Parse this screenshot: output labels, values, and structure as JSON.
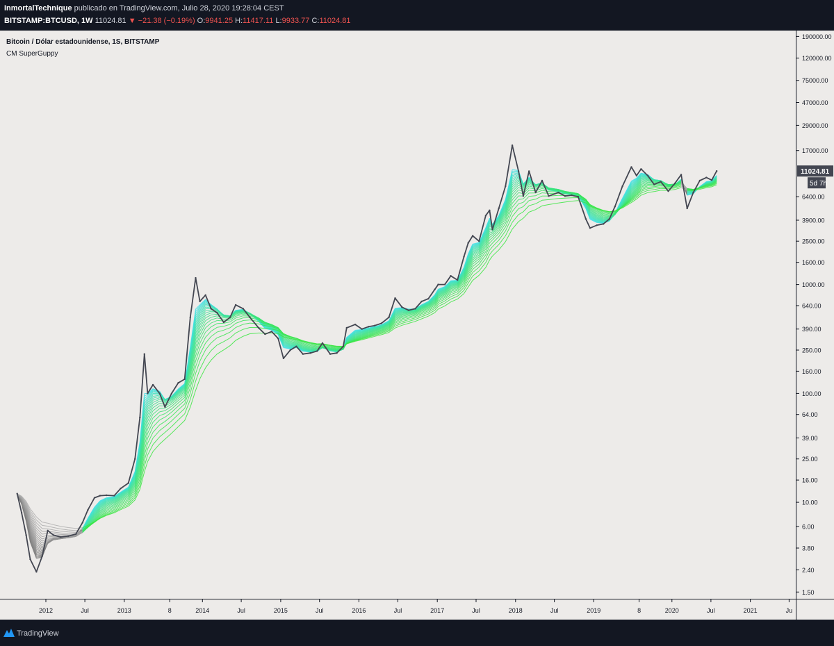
{
  "header": {
    "author": "InmortalTechnique",
    "published": " publicado en TradingView.com, Julio 28, 2020 19:28:04 CEST",
    "symbol": "BITSTAMP:BTCUSD, 1W",
    "last": "11024.81",
    "change": "▼ −21.38 (−0.19%)",
    "open_label": "O:",
    "open": "9941.25",
    "high_label": "H:",
    "high": "11417.11",
    "low_label": "L:",
    "low": "9933.77",
    "close_label": "C:",
    "close": "11024.81"
  },
  "legend": {
    "title": "Bitcoin / Dólar estadounidense, 1S, BITSTAMP",
    "indicator": "CM SuperGuppy"
  },
  "footer": {
    "brand": "TradingView"
  },
  "price_axis": {
    "ticks": [
      "190000.00",
      "120000.00",
      "75000.00",
      "47000.00",
      "29000.00",
      "17000.00",
      "6400.00",
      "3900.00",
      "2500.00",
      "1600.00",
      "1000.00",
      "640.00",
      "390.00",
      "250.00",
      "160.00",
      "100.00",
      "64.00",
      "39.00",
      "25.00",
      "16.00",
      "10.00",
      "6.00",
      "3.80",
      "2.40",
      "1.50"
    ],
    "last_price": "11024.81",
    "countdown": "5d 7h"
  },
  "time_axis": {
    "ticks": [
      "2012",
      "Jul",
      "2013",
      "8",
      "2014",
      "Jul",
      "2015",
      "Jul",
      "2016",
      "Jul",
      "2017",
      "Jul",
      "2018",
      "Jul",
      "2019",
      "8",
      "2020",
      "Jul",
      "2021",
      "Ju"
    ]
  },
  "chart_data": {
    "type": "line",
    "title": "Bitcoin / Dólar estadounidense, 1S, BITSTAMP",
    "y_scale": "log",
    "ylim": [
      1.3,
      215000
    ],
    "xlim": [
      "2011-06-01",
      "2021-08-01"
    ],
    "x": [
      "2011-08-20",
      "2011-09-10",
      "2011-10-01",
      "2011-10-20",
      "2011-11-18",
      "2011-12-15",
      "2012-01-10",
      "2012-02-05",
      "2012-03-10",
      "2012-04-15",
      "2012-05-20",
      "2012-06-20",
      "2012-07-15",
      "2012-08-15",
      "2012-09-10",
      "2012-10-10",
      "2012-11-15",
      "2012-12-15",
      "2013-01-20",
      "2013-02-20",
      "2013-03-15",
      "2013-04-05",
      "2013-04-20",
      "2013-05-15",
      "2013-06-15",
      "2013-07-10",
      "2013-08-10",
      "2013-09-10",
      "2013-10-10",
      "2013-11-05",
      "2013-11-30",
      "2013-12-20",
      "2014-01-15",
      "2014-02-10",
      "2014-03-10",
      "2014-04-10",
      "2014-05-10",
      "2014-06-05",
      "2014-07-10",
      "2014-08-10",
      "2014-09-20",
      "2014-10-20",
      "2014-11-20",
      "2014-12-20",
      "2015-01-14",
      "2015-02-15",
      "2015-03-15",
      "2015-04-15",
      "2015-05-20",
      "2015-06-20",
      "2015-07-15",
      "2015-08-20",
      "2015-09-20",
      "2015-10-20",
      "2015-11-05",
      "2015-12-15",
      "2016-01-15",
      "2016-02-15",
      "2016-03-15",
      "2016-04-15",
      "2016-05-20",
      "2016-06-18",
      "2016-07-20",
      "2016-08-20",
      "2016-09-20",
      "2016-10-20",
      "2016-11-20",
      "2016-12-20",
      "2017-01-05",
      "2017-02-05",
      "2017-03-05",
      "2017-04-05",
      "2017-05-05",
      "2017-05-25",
      "2017-06-15",
      "2017-07-15",
      "2017-08-15",
      "2017-09-02",
      "2017-09-15",
      "2017-10-15",
      "2017-11-15",
      "2017-12-17",
      "2018-01-15",
      "2018-02-06",
      "2018-03-05",
      "2018-04-05",
      "2018-05-05",
      "2018-06-05",
      "2018-07-20",
      "2018-08-20",
      "2018-09-20",
      "2018-10-20",
      "2018-11-25",
      "2018-12-15",
      "2019-01-15",
      "2019-02-15",
      "2019-03-15",
      "2019-04-10",
      "2019-05-15",
      "2019-06-26",
      "2019-07-20",
      "2019-08-10",
      "2019-09-10",
      "2019-10-10",
      "2019-11-10",
      "2019-12-15",
      "2020-01-15",
      "2020-02-13",
      "2020-03-12",
      "2020-04-10",
      "2020-05-10",
      "2020-06-10",
      "2020-07-05",
      "2020-07-28"
    ],
    "series": [
      {
        "values": [
          12,
          8,
          5,
          3,
          2.3,
          3.2,
          5.5,
          5.0,
          4.8,
          4.9,
          5.1,
          6.5,
          8.5,
          11,
          11.5,
          11.6,
          11.5,
          13.4,
          15,
          25,
          60,
          230,
          100,
          120,
          100,
          75,
          100,
          125,
          135,
          500,
          1150,
          700,
          800,
          600,
          550,
          450,
          500,
          650,
          600,
          500,
          400,
          350,
          370,
          320,
          210,
          250,
          270,
          230,
          235,
          245,
          290,
          230,
          235,
          270,
          400,
          430,
          390,
          410,
          420,
          440,
          500,
          750,
          620,
          580,
          600,
          700,
          740,
          900,
          1000,
          1000,
          1200,
          1100,
          1800,
          2400,
          2800,
          2500,
          4300,
          4800,
          3200,
          5000,
          8000,
          19000,
          11000,
          6500,
          11000,
          7000,
          9000,
          6500,
          7000,
          6500,
          6600,
          6400,
          4000,
          3300,
          3500,
          3600,
          4000,
          5200,
          8000,
          12000,
          10000,
          11500,
          10000,
          8300,
          8800,
          7200,
          8500,
          10200,
          5000,
          7000,
          9000,
          9600,
          9100,
          11024.81
        ]
      }
    ]
  }
}
